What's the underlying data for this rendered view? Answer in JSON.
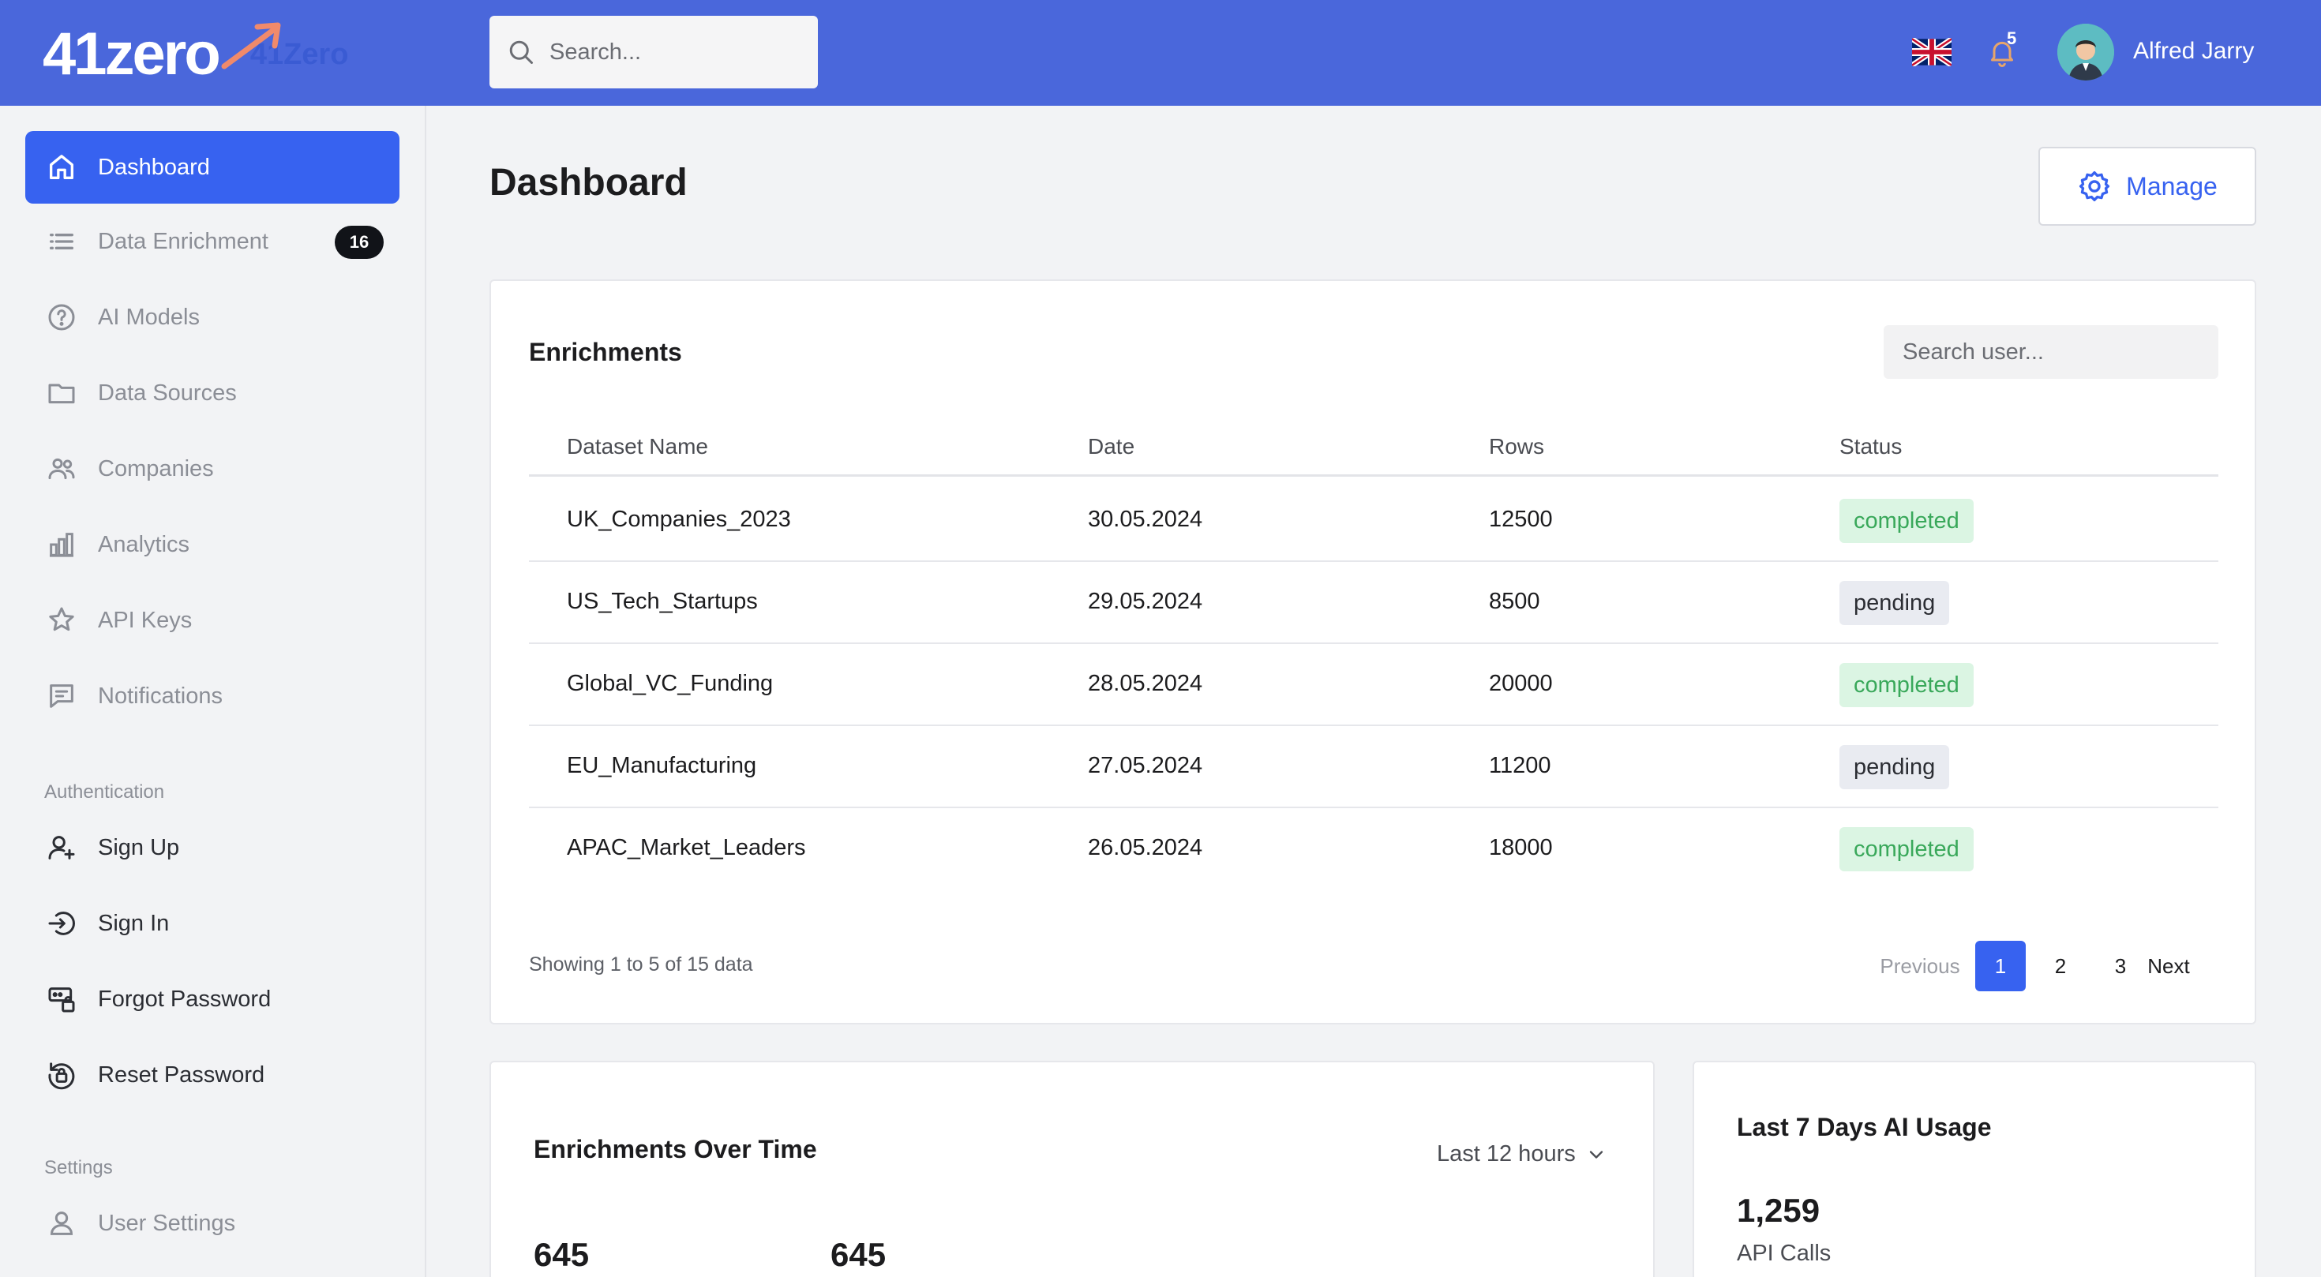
{
  "header": {
    "logo_mark": "41zero",
    "logo_text": "41Zero",
    "search_placeholder": "Search...",
    "notification_count": "5",
    "user_name": "Alfred Jarry"
  },
  "sidebar": {
    "items": [
      {
        "label": "Dashboard",
        "icon": "home-icon"
      },
      {
        "label": "Data Enrichment",
        "icon": "list-icon",
        "badge": "16"
      },
      {
        "label": "AI Models",
        "icon": "help-circle-icon"
      },
      {
        "label": "Data Sources",
        "icon": "folder-icon"
      },
      {
        "label": "Companies",
        "icon": "users-icon"
      },
      {
        "label": "Analytics",
        "icon": "bar-chart-icon"
      },
      {
        "label": "API Keys",
        "icon": "star-icon"
      },
      {
        "label": "Notifications",
        "icon": "message-icon"
      }
    ],
    "auth_section": "Authentication",
    "auth_items": [
      {
        "label": "Sign Up",
        "icon": "user-plus-icon"
      },
      {
        "label": "Sign In",
        "icon": "sign-in-icon"
      },
      {
        "label": "Forgot Password",
        "icon": "password-icon"
      },
      {
        "label": "Reset Password",
        "icon": "lock-reset-icon"
      }
    ],
    "settings_section": "Settings",
    "settings_items": [
      {
        "label": "User Settings",
        "icon": "user-icon"
      }
    ]
  },
  "main": {
    "title": "Dashboard",
    "manage_label": "Manage"
  },
  "enrichments": {
    "title": "Enrichments",
    "search_placeholder": "Search user...",
    "columns": [
      "Dataset Name",
      "Date",
      "Rows",
      "Status"
    ],
    "rows": [
      {
        "name": "UK_Companies_2023",
        "date": "30.05.2024",
        "rows": "12500",
        "status": "completed"
      },
      {
        "name": "US_Tech_Startups",
        "date": "29.05.2024",
        "rows": "8500",
        "status": "pending"
      },
      {
        "name": "Global_VC_Funding",
        "date": "28.05.2024",
        "rows": "20000",
        "status": "completed"
      },
      {
        "name": "EU_Manufacturing",
        "date": "27.05.2024",
        "rows": "11200",
        "status": "pending"
      },
      {
        "name": "APAC_Market_Leaders",
        "date": "26.05.2024",
        "rows": "18000",
        "status": "completed"
      }
    ],
    "showing": "Showing 1 to 5 of 15 data",
    "pagination": {
      "previous": "Previous",
      "pages": [
        "1",
        "2",
        "3"
      ],
      "next": "Next"
    }
  },
  "over_time": {
    "title": "Enrichments Over Time",
    "range": "Last 12 hours",
    "stat_a": "645",
    "stat_b": "645"
  },
  "ai_usage": {
    "title": "Last 7 Days AI Usage",
    "value": "1,259",
    "label": "API Calls"
  },
  "colors": {
    "header_bg": "#4a67db",
    "accent": "#3762f0",
    "completed_bg": "#dbf5e3",
    "completed_text": "#39a85a",
    "pending_bg": "#e9ebf1"
  }
}
